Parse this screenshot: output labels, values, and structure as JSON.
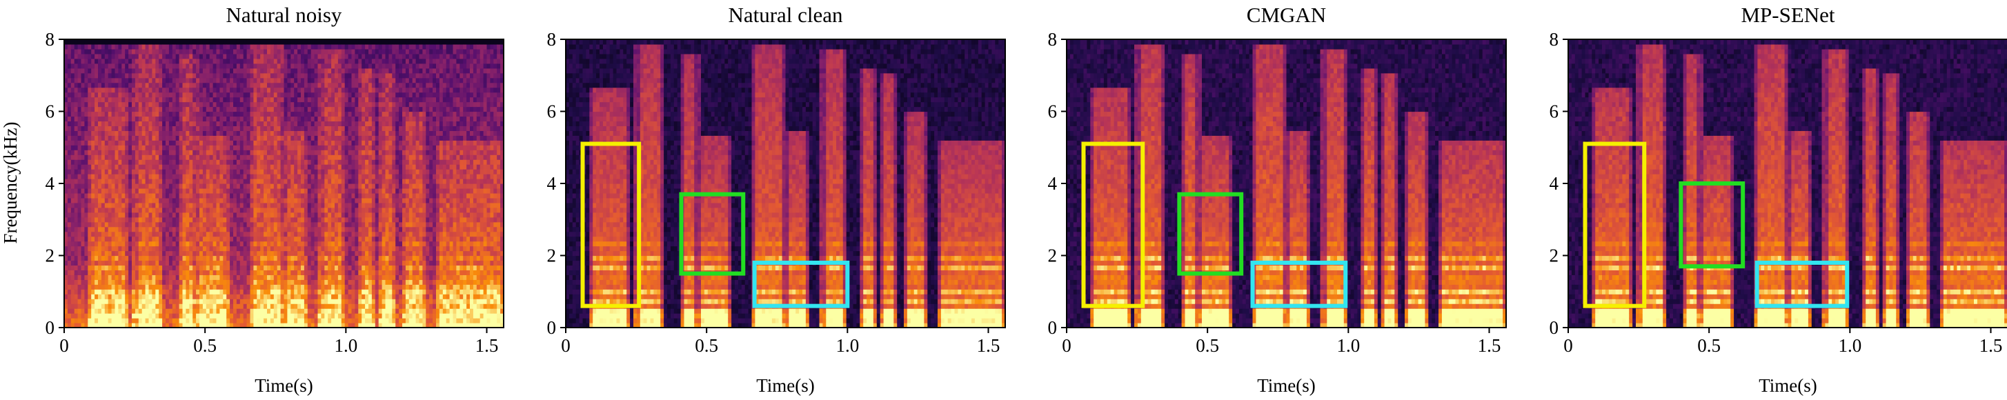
{
  "figure": {
    "ylabel": "Frequency(kHz)",
    "xlabel": "Time(s)",
    "colormap": "inferno",
    "background": "#000004"
  },
  "chart_data": [
    {
      "type": "heatmap",
      "title": "Natural noisy",
      "xlabel": "Time(s)",
      "ylabel": "Frequency(kHz)",
      "xlim": [
        0,
        1.56
      ],
      "ylim": [
        0,
        8
      ],
      "xticks": [
        0,
        0.5,
        1.0,
        1.5
      ],
      "xtick_labels": [
        "0",
        "0.5",
        "1.0",
        "1.5"
      ],
      "yticks": [
        0,
        2,
        4,
        6,
        8
      ],
      "ytick_labels": [
        "0",
        "2",
        "4",
        "6",
        "8"
      ],
      "signal": "noisy",
      "boxes": []
    },
    {
      "type": "heatmap",
      "title": "Natural clean",
      "xlabel": "Time(s)",
      "xlim": [
        0,
        1.56
      ],
      "ylim": [
        0,
        8
      ],
      "xticks": [
        0,
        0.5,
        1.0,
        1.5
      ],
      "xtick_labels": [
        "0",
        "0.5",
        "1.0",
        "1.5"
      ],
      "yticks": [
        0,
        2,
        4,
        6,
        8
      ],
      "ytick_labels": [
        "0",
        "2",
        "4",
        "6",
        "8"
      ],
      "signal": "clean",
      "boxes": [
        {
          "color": "#f5f000",
          "t": [
            0.06,
            0.26
          ],
          "f": [
            0.6,
            5.1
          ]
        },
        {
          "color": "#22dd22",
          "t": [
            0.41,
            0.63
          ],
          "f": [
            1.5,
            3.7
          ]
        },
        {
          "color": "#33e5f0",
          "t": [
            0.67,
            1.0
          ],
          "f": [
            0.6,
            1.8
          ]
        }
      ]
    },
    {
      "type": "heatmap",
      "title": "CMGAN",
      "xlabel": "Time(s)",
      "xlim": [
        0,
        1.56
      ],
      "ylim": [
        0,
        8
      ],
      "xticks": [
        0,
        0.5,
        1.0,
        1.5
      ],
      "xtick_labels": [
        "0",
        "0.5",
        "1.0",
        "1.5"
      ],
      "yticks": [
        0,
        2,
        4,
        6,
        8
      ],
      "ytick_labels": [
        "0",
        "2",
        "4",
        "6",
        "8"
      ],
      "signal": "enhanced",
      "boxes": [
        {
          "color": "#f5f000",
          "t": [
            0.06,
            0.27
          ],
          "f": [
            0.6,
            5.1
          ]
        },
        {
          "color": "#22dd22",
          "t": [
            0.4,
            0.62
          ],
          "f": [
            1.5,
            3.7
          ]
        },
        {
          "color": "#33e5f0",
          "t": [
            0.66,
            0.99
          ],
          "f": [
            0.6,
            1.8
          ]
        }
      ]
    },
    {
      "type": "heatmap",
      "title": "MP-SENet",
      "xlabel": "Time(s)",
      "xlim": [
        0,
        1.56
      ],
      "ylim": [
        0,
        8
      ],
      "xticks": [
        0,
        0.5,
        1.0,
        1.5
      ],
      "xtick_labels": [
        "0",
        "0.5",
        "1.0",
        "1.5"
      ],
      "yticks": [
        0,
        2,
        4,
        6,
        8
      ],
      "ytick_labels": [
        "0",
        "2",
        "4",
        "6",
        "8"
      ],
      "signal": "enhanced",
      "boxes": [
        {
          "color": "#f5f000",
          "t": [
            0.06,
            0.27
          ],
          "f": [
            0.6,
            5.1
          ]
        },
        {
          "color": "#22dd22",
          "t": [
            0.4,
            0.62
          ],
          "f": [
            1.7,
            4.0
          ]
        },
        {
          "color": "#33e5f0",
          "t": [
            0.67,
            0.99
          ],
          "f": [
            0.6,
            1.8
          ]
        }
      ]
    }
  ],
  "speech_segments": [
    {
      "t0": 0.1,
      "t1": 0.21,
      "fmax": 6.6
    },
    {
      "t0": 0.26,
      "t1": 0.33,
      "fmax": 7.8
    },
    {
      "t0": 0.42,
      "t1": 0.46,
      "fmax": 7.6
    },
    {
      "t0": 0.48,
      "t1": 0.57,
      "fmax": 5.3
    },
    {
      "t0": 0.67,
      "t1": 0.77,
      "fmax": 7.9
    },
    {
      "t0": 0.79,
      "t1": 0.85,
      "fmax": 5.5
    },
    {
      "t0": 0.92,
      "t1": 0.98,
      "fmax": 7.7
    },
    {
      "t0": 1.06,
      "t1": 1.09,
      "fmax": 7.2
    },
    {
      "t0": 1.13,
      "t1": 1.16,
      "fmax": 7.0
    },
    {
      "t0": 1.21,
      "t1": 1.27,
      "fmax": 6.0
    },
    {
      "t0": 1.33,
      "t1": 1.55,
      "fmax": 5.2
    }
  ]
}
